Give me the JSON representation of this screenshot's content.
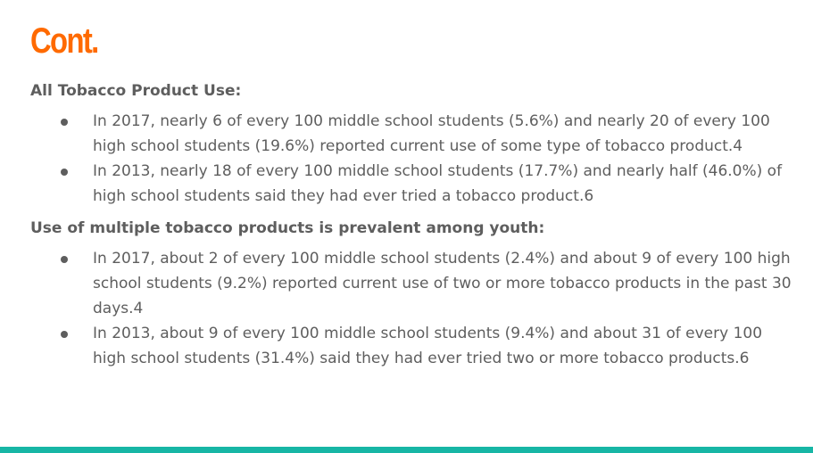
{
  "title": "Cont.",
  "sections": [
    {
      "heading": "All Tobacco Product Use:",
      "items": [
        "In 2017, nearly 6 of every 100 middle school students (5.6%) and nearly 20 of every 100 high school students (19.6%) reported current use of some type of tobacco product.4",
        "In 2013, nearly 18 of every 100 middle school students (17.7%) and nearly half (46.0%) of high school students said they had ever tried a tobacco product.6"
      ]
    },
    {
      "heading": "Use of multiple tobacco products is prevalent among youth:",
      "items": [
        "In 2017, about 2 of every 100 middle school students (2.4%) and about 9 of every 100 high school students (9.2%) reported current use of two or more tobacco products in the past 30 days.4",
        "In 2013, about 9 of every 100 middle school students (9.4%) and about 31 of every 100 high school students (31.4%) said they had ever tried two or more tobacco products.6"
      ]
    }
  ],
  "colors": {
    "title": "#ff6a00",
    "text": "#5e5e5e",
    "bottom_bar": "#17b6a5"
  }
}
